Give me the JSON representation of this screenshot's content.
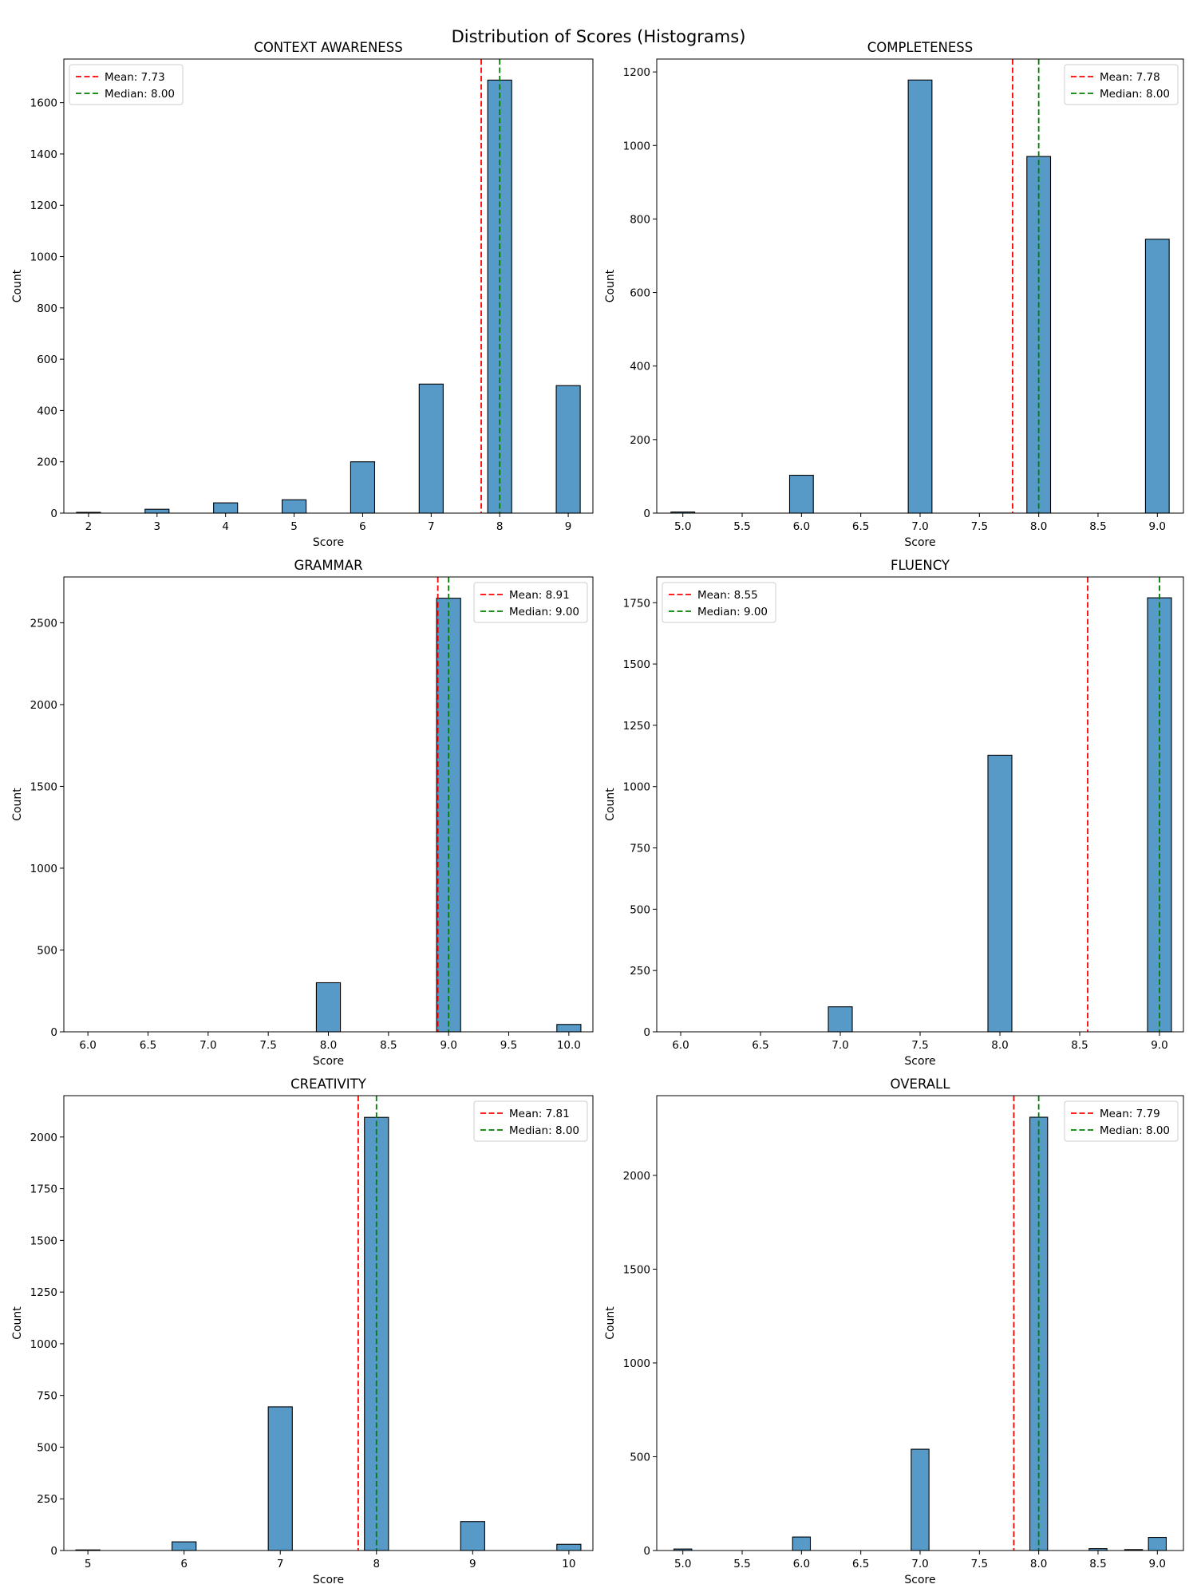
{
  "suptitle": "Distribution of Scores (Histograms)",
  "colors": {
    "bar": "#5799c7",
    "bar_edge": "#000000",
    "mean": "#ff0000",
    "median": "#008000",
    "frame": "#000000"
  },
  "chart_data": [
    {
      "type": "bar",
      "title": "CONTEXT AWARENESS",
      "xlabel": "Score",
      "ylabel": "Count",
      "xlim": [
        1.64,
        9.36
      ],
      "ylim": [
        0,
        1770
      ],
      "xticks": [
        2,
        3,
        4,
        5,
        6,
        7,
        8,
        9
      ],
      "xtick_labels": [
        "2",
        "3",
        "4",
        "5",
        "6",
        "7",
        "8",
        "9"
      ],
      "yticks": [
        0,
        200,
        400,
        600,
        800,
        1000,
        1200,
        1400,
        1600
      ],
      "ytick_labels": [
        "0",
        "200",
        "400",
        "600",
        "800",
        "1000",
        "1200",
        "1400",
        "1600"
      ],
      "bin_width": 0.35,
      "bins": [
        {
          "x": 2,
          "count": 3
        },
        {
          "x": 3,
          "count": 15
        },
        {
          "x": 4,
          "count": 40
        },
        {
          "x": 5,
          "count": 52
        },
        {
          "x": 6,
          "count": 200
        },
        {
          "x": 7,
          "count": 503
        },
        {
          "x": 8,
          "count": 1688
        },
        {
          "x": 9,
          "count": 497
        }
      ],
      "mean": 7.73,
      "median": 8.0,
      "legend_loc": "upper-left",
      "legend": [
        "Mean: 7.73",
        "Median: 8.00"
      ]
    },
    {
      "type": "bar",
      "title": "COMPLETENESS",
      "xlabel": "Score",
      "ylabel": "Count",
      "xlim": [
        4.78,
        9.22
      ],
      "ylim": [
        0,
        1235
      ],
      "xticks": [
        5.0,
        5.5,
        6.0,
        6.5,
        7.0,
        7.5,
        8.0,
        8.5,
        9.0
      ],
      "xtick_labels": [
        "5.0",
        "5.5",
        "6.0",
        "6.5",
        "7.0",
        "7.5",
        "8.0",
        "8.5",
        "9.0"
      ],
      "yticks": [
        0,
        200,
        400,
        600,
        800,
        1000,
        1200
      ],
      "ytick_labels": [
        "0",
        "200",
        "400",
        "600",
        "800",
        "1000",
        "1200"
      ],
      "bin_width": 0.2,
      "bins": [
        {
          "x": 5,
          "count": 3
        },
        {
          "x": 6,
          "count": 103
        },
        {
          "x": 7,
          "count": 1178
        },
        {
          "x": 8,
          "count": 970
        },
        {
          "x": 9,
          "count": 745
        }
      ],
      "mean": 7.78,
      "median": 8.0,
      "legend_loc": "upper-right",
      "legend": [
        "Mean: 7.78",
        "Median: 8.00"
      ]
    },
    {
      "type": "bar",
      "title": "GRAMMAR",
      "xlabel": "Score",
      "ylabel": "Count",
      "xlim": [
        5.8,
        10.2
      ],
      "ylim": [
        0,
        2780
      ],
      "xticks": [
        6.0,
        6.5,
        7.0,
        7.5,
        8.0,
        8.5,
        9.0,
        9.5,
        10.0
      ],
      "xtick_labels": [
        "6.0",
        "6.5",
        "7.0",
        "7.5",
        "8.0",
        "8.5",
        "9.0",
        "9.5",
        "10.0"
      ],
      "yticks": [
        0,
        500,
        1000,
        1500,
        2000,
        2500
      ],
      "ytick_labels": [
        "0",
        "500",
        "1000",
        "1500",
        "2000",
        "2500"
      ],
      "bin_width": 0.2,
      "bins": [
        {
          "x": 8,
          "count": 300
        },
        {
          "x": 9,
          "count": 2650
        },
        {
          "x": 10,
          "count": 45
        }
      ],
      "mean": 8.91,
      "median": 9.0,
      "legend_loc": "upper-right",
      "legend": [
        "Mean: 8.91",
        "Median: 9.00"
      ]
    },
    {
      "type": "bar",
      "title": "FLUENCY",
      "xlabel": "Score",
      "ylabel": "Count",
      "xlim": [
        5.85,
        9.15
      ],
      "ylim": [
        0,
        1855
      ],
      "xticks": [
        6.0,
        6.5,
        7.0,
        7.5,
        8.0,
        8.5,
        9.0
      ],
      "xtick_labels": [
        "6.0",
        "6.5",
        "7.0",
        "7.5",
        "8.0",
        "8.5",
        "9.0"
      ],
      "yticks": [
        0,
        250,
        500,
        750,
        1000,
        1250,
        1500,
        1750
      ],
      "ytick_labels": [
        "0",
        "250",
        "500",
        "750",
        "1000",
        "1250",
        "1500",
        "1750"
      ],
      "bin_width": 0.15,
      "bins": [
        {
          "x": 7,
          "count": 102
        },
        {
          "x": 8,
          "count": 1128
        },
        {
          "x": 9,
          "count": 1770
        }
      ],
      "mean": 8.55,
      "median": 9.0,
      "legend_loc": "upper-left",
      "legend": [
        "Mean: 8.55",
        "Median: 9.00"
      ]
    },
    {
      "type": "bar",
      "title": "CREATIVITY",
      "xlabel": "Score",
      "ylabel": "Count",
      "xlim": [
        4.75,
        10.25
      ],
      "ylim": [
        0,
        2200
      ],
      "xticks": [
        5,
        6,
        7,
        8,
        9,
        10
      ],
      "xtick_labels": [
        "5",
        "6",
        "7",
        "8",
        "9",
        "10"
      ],
      "yticks": [
        0,
        250,
        500,
        750,
        1000,
        1250,
        1500,
        1750,
        2000
      ],
      "ytick_labels": [
        "0",
        "250",
        "500",
        "750",
        "1000",
        "1250",
        "1500",
        "1750",
        "2000"
      ],
      "bin_width": 0.25,
      "bins": [
        {
          "x": 5,
          "count": 3
        },
        {
          "x": 6,
          "count": 42
        },
        {
          "x": 7,
          "count": 695
        },
        {
          "x": 8,
          "count": 2095
        },
        {
          "x": 9,
          "count": 140
        },
        {
          "x": 10,
          "count": 30
        }
      ],
      "mean": 7.81,
      "median": 8.0,
      "legend_loc": "upper-right",
      "legend": [
        "Mean: 7.81",
        "Median: 8.00"
      ]
    },
    {
      "type": "bar",
      "title": "OVERALL",
      "xlabel": "Score",
      "ylabel": "Count",
      "xlim": [
        4.78,
        9.22
      ],
      "ylim": [
        0,
        2425
      ],
      "xticks": [
        5.0,
        5.5,
        6.0,
        6.5,
        7.0,
        7.5,
        8.0,
        8.5,
        9.0
      ],
      "xtick_labels": [
        "5.0",
        "5.5",
        "6.0",
        "6.5",
        "7.0",
        "7.5",
        "8.0",
        "8.5",
        "9.0"
      ],
      "yticks": [
        0,
        500,
        1000,
        1500,
        2000
      ],
      "ytick_labels": [
        "0",
        "500",
        "1000",
        "1500",
        "2000"
      ],
      "bin_width": 0.15,
      "bins": [
        {
          "x": 5,
          "count": 8
        },
        {
          "x": 6,
          "count": 72
        },
        {
          "x": 7,
          "count": 540
        },
        {
          "x": 8,
          "count": 2310
        },
        {
          "x": 8.5,
          "count": 10
        },
        {
          "x": 8.8,
          "count": 5
        },
        {
          "x": 9,
          "count": 70
        }
      ],
      "mean": 7.79,
      "median": 8.0,
      "legend_loc": "upper-right",
      "legend": [
        "Mean: 7.79",
        "Median: 8.00"
      ]
    }
  ]
}
